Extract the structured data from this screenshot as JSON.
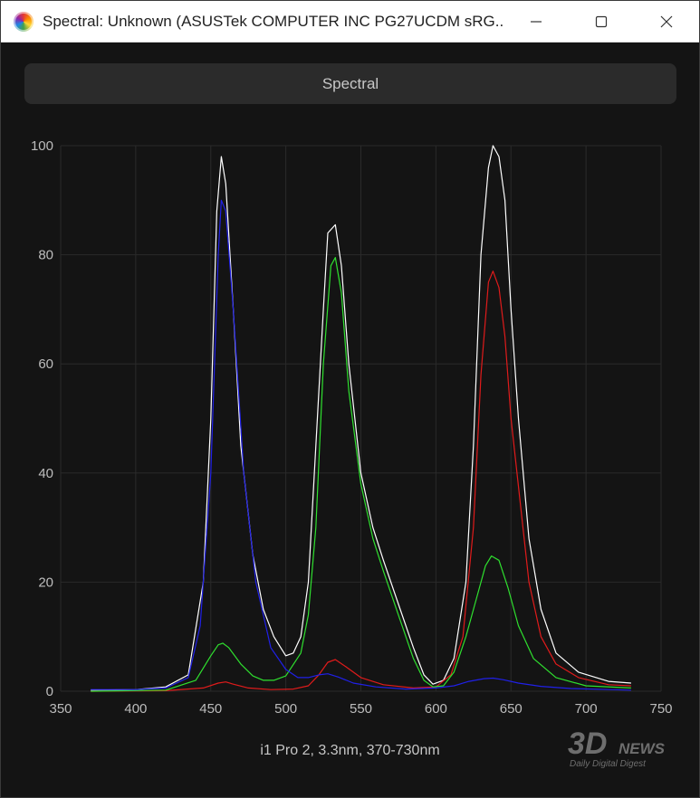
{
  "window": {
    "title": "Spectral: Unknown (ASUSTek COMPUTER INC PG27UCDM sRG...",
    "minimize_icon": "minimize-icon",
    "maximize_icon": "maximize-icon",
    "close_icon": "close-icon"
  },
  "tab": {
    "label": "Spectral"
  },
  "caption": "i1 Pro 2, 3.3nm, 370-730nm",
  "watermark": {
    "text_main": "3DNEWS",
    "text_sub": "Daily Digital Digest"
  },
  "colors": {
    "white": "#ffffff",
    "red": "#e01b1b",
    "green": "#2fe02f",
    "blue": "#2020e8",
    "grid": "#2a2a2a",
    "background": "#141414"
  },
  "chart_data": {
    "type": "line",
    "title": "",
    "xlabel": "",
    "ylabel": "",
    "xlim": [
      350,
      750
    ],
    "ylim": [
      0,
      100
    ],
    "x_ticks": [
      350,
      400,
      450,
      500,
      550,
      600,
      650,
      700,
      750
    ],
    "y_ticks": [
      0,
      20,
      40,
      60,
      80,
      100
    ],
    "grid": true,
    "series": [
      {
        "color": "#ffffff",
        "points": [
          [
            370,
            0.2
          ],
          [
            400,
            0.3
          ],
          [
            420,
            0.8
          ],
          [
            435,
            3
          ],
          [
            445,
            20
          ],
          [
            450,
            50
          ],
          [
            454,
            88
          ],
          [
            457,
            98
          ],
          [
            460,
            93
          ],
          [
            465,
            70
          ],
          [
            470,
            45
          ],
          [
            478,
            25
          ],
          [
            485,
            15
          ],
          [
            492,
            10
          ],
          [
            500,
            6.5
          ],
          [
            505,
            7
          ],
          [
            510,
            10
          ],
          [
            515,
            20
          ],
          [
            520,
            45
          ],
          [
            525,
            70
          ],
          [
            528,
            84
          ],
          [
            533,
            85.5
          ],
          [
            537,
            78
          ],
          [
            542,
            60
          ],
          [
            550,
            40
          ],
          [
            558,
            30
          ],
          [
            565,
            24
          ],
          [
            575,
            16
          ],
          [
            585,
            8
          ],
          [
            592,
            3
          ],
          [
            598,
            1.3
          ],
          [
            605,
            2
          ],
          [
            612,
            6
          ],
          [
            620,
            20
          ],
          [
            625,
            45
          ],
          [
            630,
            80
          ],
          [
            635,
            96
          ],
          [
            638,
            100
          ],
          [
            642,
            98
          ],
          [
            646,
            90
          ],
          [
            650,
            70
          ],
          [
            655,
            50
          ],
          [
            662,
            28
          ],
          [
            670,
            15
          ],
          [
            680,
            7
          ],
          [
            695,
            3.5
          ],
          [
            715,
            1.8
          ],
          [
            730,
            1.5
          ]
        ]
      },
      {
        "color": "#e01b1b",
        "points": [
          [
            370,
            0
          ],
          [
            420,
            0.1
          ],
          [
            445,
            0.6
          ],
          [
            455,
            1.5
          ],
          [
            460,
            1.7
          ],
          [
            465,
            1.3
          ],
          [
            475,
            0.6
          ],
          [
            490,
            0.3
          ],
          [
            505,
            0.4
          ],
          [
            515,
            1
          ],
          [
            522,
            3
          ],
          [
            528,
            5.3
          ],
          [
            533,
            5.8
          ],
          [
            540,
            4.5
          ],
          [
            550,
            2.5
          ],
          [
            565,
            1.2
          ],
          [
            585,
            0.6
          ],
          [
            600,
            0.8
          ],
          [
            610,
            3
          ],
          [
            618,
            10
          ],
          [
            625,
            30
          ],
          [
            630,
            58
          ],
          [
            635,
            75
          ],
          [
            638,
            77
          ],
          [
            642,
            74
          ],
          [
            646,
            65
          ],
          [
            650,
            50
          ],
          [
            656,
            35
          ],
          [
            662,
            20
          ],
          [
            670,
            10
          ],
          [
            680,
            5
          ],
          [
            695,
            2.5
          ],
          [
            715,
            1.2
          ],
          [
            730,
            1
          ]
        ]
      },
      {
        "color": "#2fe02f",
        "points": [
          [
            370,
            0
          ],
          [
            420,
            0.2
          ],
          [
            440,
            2
          ],
          [
            450,
            6.5
          ],
          [
            455,
            8.5
          ],
          [
            458,
            8.8
          ],
          [
            462,
            8
          ],
          [
            470,
            5
          ],
          [
            478,
            2.8
          ],
          [
            485,
            2
          ],
          [
            492,
            2
          ],
          [
            500,
            2.8
          ],
          [
            510,
            7
          ],
          [
            515,
            14
          ],
          [
            520,
            30
          ],
          [
            525,
            60
          ],
          [
            530,
            78
          ],
          [
            533,
            79.5
          ],
          [
            537,
            73
          ],
          [
            542,
            55
          ],
          [
            550,
            38
          ],
          [
            558,
            28
          ],
          [
            565,
            22
          ],
          [
            575,
            14
          ],
          [
            585,
            6
          ],
          [
            592,
            2
          ],
          [
            598,
            0.8
          ],
          [
            605,
            1
          ],
          [
            612,
            3.5
          ],
          [
            620,
            10
          ],
          [
            628,
            18
          ],
          [
            633,
            23
          ],
          [
            637,
            24.8
          ],
          [
            642,
            24
          ],
          [
            648,
            19
          ],
          [
            655,
            12
          ],
          [
            665,
            6
          ],
          [
            680,
            2.5
          ],
          [
            700,
            1
          ],
          [
            730,
            0.6
          ]
        ]
      },
      {
        "color": "#2020e8",
        "points": [
          [
            370,
            0.3
          ],
          [
            400,
            0.3
          ],
          [
            420,
            0.6
          ],
          [
            435,
            2.5
          ],
          [
            443,
            12
          ],
          [
            450,
            40
          ],
          [
            455,
            80
          ],
          [
            457,
            90
          ],
          [
            460,
            88
          ],
          [
            465,
            70
          ],
          [
            472,
            40
          ],
          [
            480,
            20
          ],
          [
            490,
            8
          ],
          [
            500,
            4
          ],
          [
            508,
            2.5
          ],
          [
            515,
            2.5
          ],
          [
            522,
            3
          ],
          [
            528,
            3.2
          ],
          [
            535,
            2.6
          ],
          [
            545,
            1.5
          ],
          [
            560,
            0.8
          ],
          [
            580,
            0.4
          ],
          [
            600,
            0.6
          ],
          [
            612,
            1
          ],
          [
            622,
            1.8
          ],
          [
            632,
            2.3
          ],
          [
            638,
            2.4
          ],
          [
            645,
            2.1
          ],
          [
            655,
            1.5
          ],
          [
            670,
            0.9
          ],
          [
            690,
            0.5
          ],
          [
            730,
            0.2
          ]
        ]
      }
    ]
  }
}
